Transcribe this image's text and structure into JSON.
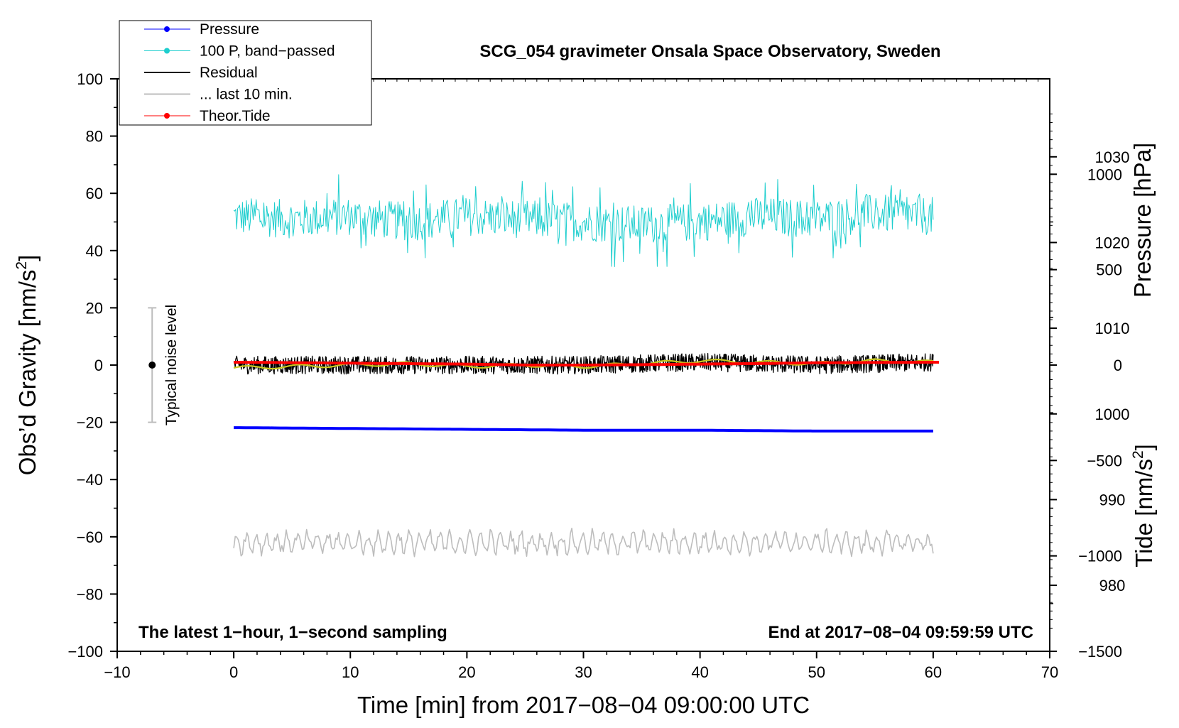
{
  "chart_data": {
    "type": "line",
    "title": "SCG_054 gravimeter Onsala Space Observatory, Sweden",
    "xlabel": "Time [min] from 2017−08−04 09:00:00 UTC",
    "ylabel_left_main": "Obs’d Gravity [nm/s",
    "ylabel_left_sup": "2",
    "ylabel_left_close": "]",
    "ylabel_right_pressure": "Pressure [hPa]",
    "ylabel_right_tide_main": "Tide [nm/s",
    "ylabel_right_tide_sup": "2",
    "ylabel_right_tide_close": "]",
    "xlim": [
      -10,
      70
    ],
    "ylim": [
      -100,
      100
    ],
    "pressure_lim": [
      972.3,
      1039.1
    ],
    "tide_lim": [
      -1500,
      1500
    ],
    "x_ticks": [
      "−10",
      "0",
      "10",
      "20",
      "30",
      "40",
      "50",
      "60",
      "70"
    ],
    "y_ticks": [
      "−100",
      "−80",
      "−60",
      "−40",
      "−20",
      "0",
      "20",
      "40",
      "60",
      "80",
      "100"
    ],
    "pressure_ticks": [
      "980",
      "990",
      "1000",
      "1010",
      "1020",
      "1030"
    ],
    "tide_ticks": [
      "−1500",
      "−1000",
      "−500",
      "0",
      "500",
      "1000"
    ],
    "annotation_left": "The latest 1−hour, 1−second sampling",
    "annotation_right": "End at 2017−08−04 09:59:59 UTC",
    "noise_bar_label": "Typical noise level",
    "noise_bar": {
      "x": -7,
      "y_center": 0,
      "y_low": -20,
      "y_high": 20
    },
    "legend_position": "top-left",
    "legend": [
      {
        "label": "Pressure",
        "color": "#0000ff",
        "marker": "dot"
      },
      {
        "label": "100 P, band−passed",
        "color": "#1ecece",
        "marker": "dot"
      },
      {
        "label": "Residual",
        "color": "#000000",
        "marker": "none"
      },
      {
        "label": "... last 10 min.",
        "color": "#bdbdbd",
        "marker": "none"
      },
      {
        "label": "Theor.Tide",
        "color": "#ff0000",
        "marker": "dot"
      }
    ],
    "series": [
      {
        "name": "Pressure",
        "axis": "pressure_hPa",
        "color": "#0000ff",
        "x": [
          0,
          10,
          20,
          30,
          40,
          50,
          60
        ],
        "y": [
          998.4,
          998.3,
          998.2,
          998.1,
          998.1,
          998.0,
          998.0
        ]
      },
      {
        "name": "100 P, band−passed",
        "axis": "gravity_nm_s2",
        "color": "#1ecece",
        "x": [
          0,
          5,
          10,
          15,
          20,
          25,
          30,
          35,
          40,
          45,
          50,
          55,
          60
        ],
        "y": [
          52,
          51,
          52,
          50,
          52,
          51,
          50,
          49,
          50,
          52,
          51,
          53,
          52
        ],
        "min": 29,
        "max": 72
      },
      {
        "name": "Residual",
        "axis": "gravity_nm_s2",
        "color": "#000000",
        "x": [
          0,
          10,
          20,
          30,
          40,
          50,
          60
        ],
        "y": [
          0,
          0,
          0,
          0,
          1,
          0,
          1
        ],
        "min": -6,
        "max": 8
      },
      {
        "name": "Residual smoothed",
        "axis": "gravity_nm_s2",
        "color": "#c8c820",
        "x": [
          0,
          5,
          10,
          15,
          20,
          25,
          30,
          35,
          40,
          45,
          50,
          55,
          60
        ],
        "y": [
          -1,
          -0.5,
          0,
          0.5,
          -0.5,
          0,
          -0.5,
          0.5,
          1.5,
          1,
          0.5,
          1.5,
          1
        ]
      },
      {
        "name": "... last 10 min.",
        "axis": "gravity_nm_s2",
        "color": "#bdbdbd",
        "x": [
          0,
          10,
          20,
          30,
          40,
          50,
          60
        ],
        "y": [
          -62,
          -62,
          -62,
          -62,
          -62,
          -62,
          -62
        ],
        "min": -67,
        "max": -55
      },
      {
        "name": "Theor.Tide",
        "axis": "tide_nm_s2",
        "color": "#ff0000",
        "x": [
          0,
          10,
          20,
          25,
          30,
          35,
          45,
          50,
          60.5
        ],
        "y": [
          15,
          10,
          5,
          0,
          0,
          2,
          8,
          12,
          15
        ]
      }
    ]
  }
}
